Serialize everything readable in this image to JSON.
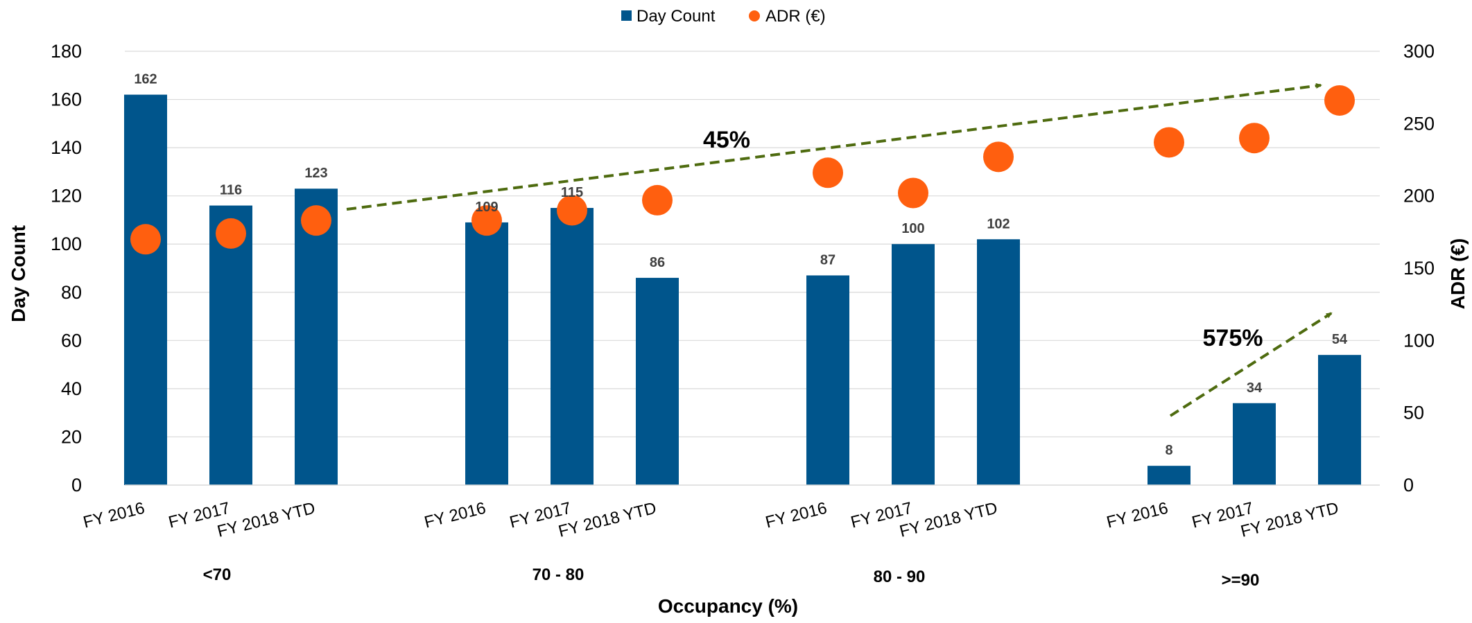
{
  "chart_data": {
    "type": "bar",
    "title": "",
    "xlabel": "Occupancy (%)",
    "ylabel": "Day Count",
    "y2label": "ADR (€)",
    "ylim": [
      0,
      180
    ],
    "yticks": [
      "0",
      "20",
      "40",
      "60",
      "80",
      "100",
      "120",
      "140",
      "160",
      "180"
    ],
    "y2lim": [
      0,
      300
    ],
    "y2ticks": [
      "0",
      "50",
      "100",
      "150",
      "200",
      "250",
      "300"
    ],
    "grid": true,
    "legend_position": "top-center",
    "legend": [
      {
        "label": "Day Count",
        "marker": "square",
        "color": "#00558C"
      },
      {
        "label": "ADR (€)",
        "marker": "circle",
        "color": "#FF5F0F"
      }
    ],
    "groups": [
      {
        "label": "<70",
        "categories": [
          "FY 2016",
          "FY 2017",
          "FY 2018 YTD"
        ]
      },
      {
        "label": "70 - 80",
        "categories": [
          "FY 2016",
          "FY 2017",
          "FY 2018 YTD"
        ]
      },
      {
        "label": "80 - 90",
        "categories": [
          "FY 2016",
          "FY 2017",
          "FY 2018 YTD"
        ]
      },
      {
        "label": ">=90",
        "categories": [
          "FY 2016",
          "FY 2017",
          "FY 2018 YTD"
        ]
      }
    ],
    "series": [
      {
        "name": "Day Count",
        "type": "bar",
        "axis": "left",
        "color": "#00558C",
        "values": [
          162,
          116,
          123,
          109,
          115,
          86,
          87,
          100,
          102,
          8,
          34,
          54
        ],
        "labels": [
          "162",
          "116",
          "123",
          "109",
          "115",
          "86",
          "87",
          "100",
          "102",
          "8",
          "34",
          "54"
        ]
      },
      {
        "name": "ADR (€)",
        "type": "scatter",
        "axis": "right",
        "color": "#FF5F0F",
        "values": [
          170,
          174,
          183,
          183,
          190,
          197,
          216,
          202,
          227,
          237,
          240,
          266
        ]
      }
    ],
    "annotations": [
      {
        "text": "45%",
        "arrow_color": "#4E6B0F"
      },
      {
        "text": "575%",
        "arrow_color": "#4E6B0F"
      }
    ]
  }
}
